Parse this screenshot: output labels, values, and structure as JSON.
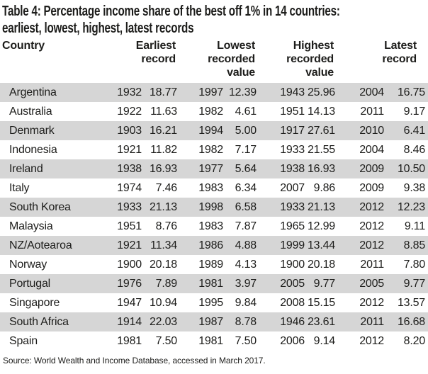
{
  "title": {
    "line1": "Table 4: Percentage income share of the best off 1% in 14 countries:",
    "line2": "earliest, lowest, highest, latest records"
  },
  "table": {
    "columns": {
      "country": "Country",
      "earliest": "Earliest\nrecord",
      "lowest": "Lowest\nrecorded\nvalue",
      "highest": "Highest\nrecorded\nvalue",
      "latest": "Latest\nrecord"
    },
    "rows": [
      {
        "country": "Argentina",
        "earliest_year": "1932",
        "earliest_value": "18.77",
        "lowest_year": "1997",
        "lowest_value": "12.39",
        "highest_year": "1943",
        "highest_value": "25.96",
        "latest_year": "2004",
        "latest_value": "16.75"
      },
      {
        "country": "Australia",
        "earliest_year": "1922",
        "earliest_value": "11.63",
        "lowest_year": "1982",
        "lowest_value": "4.61",
        "highest_year": "1951",
        "highest_value": "14.13",
        "latest_year": "2011",
        "latest_value": "9.17"
      },
      {
        "country": "Denmark",
        "earliest_year": "1903",
        "earliest_value": "16.21",
        "lowest_year": "1994",
        "lowest_value": "5.00",
        "highest_year": "1917",
        "highest_value": "27.61",
        "latest_year": "2010",
        "latest_value": "6.41"
      },
      {
        "country": "Indonesia",
        "earliest_year": "1921",
        "earliest_value": "11.82",
        "lowest_year": "1982",
        "lowest_value": "7.17",
        "highest_year": "1933",
        "highest_value": "21.55",
        "latest_year": "2004",
        "latest_value": "8.46"
      },
      {
        "country": "Ireland",
        "earliest_year": "1938",
        "earliest_value": "16.93",
        "lowest_year": "1977",
        "lowest_value": "5.64",
        "highest_year": "1938",
        "highest_value": "16.93",
        "latest_year": "2009",
        "latest_value": "10.50"
      },
      {
        "country": "Italy",
        "earliest_year": "1974",
        "earliest_value": "7.46",
        "lowest_year": "1983",
        "lowest_value": "6.34",
        "highest_year": "2007",
        "highest_value": "9.86",
        "latest_year": "2009",
        "latest_value": "9.38"
      },
      {
        "country": "South Korea",
        "earliest_year": "1933",
        "earliest_value": "21.13",
        "lowest_year": "1998",
        "lowest_value": "6.58",
        "highest_year": "1933",
        "highest_value": "21.13",
        "latest_year": "2012",
        "latest_value": "12.23"
      },
      {
        "country": "Malaysia",
        "earliest_year": "1951",
        "earliest_value": "8.76",
        "lowest_year": "1983",
        "lowest_value": "7.87",
        "highest_year": "1965",
        "highest_value": "12.99",
        "latest_year": "2012",
        "latest_value": "9.11"
      },
      {
        "country": "NZ/Aotearoa",
        "earliest_year": "1921",
        "earliest_value": "11.34",
        "lowest_year": "1986",
        "lowest_value": "4.88",
        "highest_year": "1999",
        "highest_value": "13.44",
        "latest_year": "2012",
        "latest_value": "8.85"
      },
      {
        "country": "Norway",
        "earliest_year": "1900",
        "earliest_value": "20.18",
        "lowest_year": "1989",
        "lowest_value": "4.13",
        "highest_year": "1900",
        "highest_value": "20.18",
        "latest_year": "2011",
        "latest_value": "7.80"
      },
      {
        "country": "Portugal",
        "earliest_year": "1976",
        "earliest_value": "7.89",
        "lowest_year": "1981",
        "lowest_value": "3.97",
        "highest_year": "2005",
        "highest_value": "9.77",
        "latest_year": "2005",
        "latest_value": "9.77"
      },
      {
        "country": "Singapore",
        "earliest_year": "1947",
        "earliest_value": "10.94",
        "lowest_year": "1995",
        "lowest_value": "9.84",
        "highest_year": "2008",
        "highest_value": "15.15",
        "latest_year": "2012",
        "latest_value": "13.57"
      },
      {
        "country": "South Africa",
        "earliest_year": "1914",
        "earliest_value": "22.03",
        "lowest_year": "1987",
        "lowest_value": "8.78",
        "highest_year": "1946",
        "highest_value": "23.61",
        "latest_year": "2011",
        "latest_value": "16.68"
      },
      {
        "country": "Spain",
        "earliest_year": "1981",
        "earliest_value": "7.50",
        "lowest_year": "1981",
        "lowest_value": "7.50",
        "highest_year": "2006",
        "highest_value": "9.14",
        "latest_year": "2012",
        "latest_value": "8.20"
      }
    ]
  },
  "source": "Source: World Wealth and Income Database, accessed in March 2017.",
  "colors": {
    "stripe": "#d6d6d6",
    "text": "#1d1d1b",
    "background": "#ffffff"
  }
}
